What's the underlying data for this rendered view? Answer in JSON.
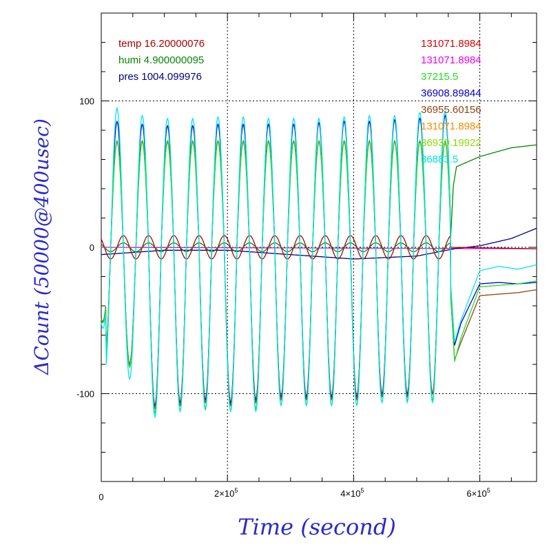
{
  "chart_data": {
    "type": "line",
    "xlabel": "Time (second)",
    "ylabel": "ΔCount (50000@400usec)",
    "xlim": [
      0,
      690000
    ],
    "ylim": [
      -160,
      160
    ],
    "x_ticks": [
      {
        "value": 0,
        "label": "0"
      },
      {
        "value": 200000,
        "mant": "2×10",
        "exp": "5"
      },
      {
        "value": 400000,
        "mant": "4×10",
        "exp": "5"
      },
      {
        "value": 600000,
        "mant": "6×10",
        "exp": "5"
      }
    ],
    "y_ticks": [
      {
        "value": 100,
        "label": "100"
      },
      {
        "value": 0,
        "label": "0"
      },
      {
        "value": -100,
        "label": "-100"
      }
    ],
    "grid": true,
    "env_labels": [
      {
        "text": "temp 16.20000076",
        "color": "#aa0000"
      },
      {
        "text": "humi 4.900000095",
        "color": "#008800"
      },
      {
        "text": "pres 1004.099976",
        "color": "#000080"
      }
    ],
    "channel_labels": [
      {
        "text": "131071.8984",
        "color": "#dd0000"
      },
      {
        "text": "131071.8984",
        "color": "#ee00ee"
      },
      {
        "text": "37215.5",
        "color": "#22dd22"
      },
      {
        "text": "36908.89844",
        "color": "#0000cc"
      },
      {
        "text": "36955.60156",
        "color": "#8b4513"
      },
      {
        "text": "131071.8984",
        "color": "#ff8800"
      },
      {
        "text": "36930.19922",
        "color": "#88dd00"
      },
      {
        "text": "36883.5",
        "color": "#00dddd"
      }
    ],
    "oscillation": {
      "period": 40000,
      "phase_x": 25000,
      "end_x": 553000
    },
    "series": [
      {
        "color": "#00e5e5",
        "peaks": [
          95,
          90,
          88,
          88,
          89,
          89,
          88,
          88,
          88,
          89,
          90,
          90,
          92,
          93
        ],
        "troughs": [
          -90,
          -116,
          -112,
          -110,
          -112,
          -112,
          -108,
          -108,
          -108,
          -108,
          -106,
          -106,
          -106,
          -104
        ],
        "step_x": [
          553000,
          560000,
          570000,
          600000,
          630000,
          660000,
          690000
        ],
        "step_y": [
          -20,
          -65,
          -50,
          -16,
          -13,
          -15,
          -12
        ]
      },
      {
        "color": "#22dd22",
        "peaks": [
          73,
          73,
          73,
          73,
          73,
          73,
          73,
          73,
          73,
          73,
          73,
          73,
          73,
          73
        ],
        "troughs": [
          -82,
          -113,
          -112,
          -111,
          -112,
          -110,
          -108,
          -108,
          -108,
          -108,
          -106,
          -105,
          -104,
          -104
        ],
        "step_x": [
          553000,
          560000,
          570000,
          600000,
          630000,
          660000,
          690000
        ],
        "step_y": [
          -25,
          -78,
          -62,
          -27,
          -26,
          -25,
          -23
        ]
      },
      {
        "color": "#8b4513",
        "peaks": [
          72,
          72,
          72,
          72,
          72,
          72,
          72,
          72,
          72,
          72,
          72,
          72,
          72,
          72
        ],
        "troughs": [
          -80,
          -110,
          -108,
          -106,
          -108,
          -106,
          -104,
          -104,
          -104,
          -104,
          -102,
          -102,
          -100,
          -100
        ],
        "step_x": [
          553000,
          560000,
          570000,
          600000,
          630000,
          660000,
          690000
        ],
        "step_y": [
          -28,
          -77,
          -65,
          -33,
          -32,
          -31,
          -29
        ]
      },
      {
        "color": "#0000cc",
        "peaks": [
          86,
          84,
          83,
          83,
          84,
          84,
          84,
          84,
          85,
          86,
          86,
          87,
          88,
          90
        ],
        "troughs": [
          -80,
          -108,
          -106,
          -104,
          -106,
          -104,
          -102,
          -102,
          -102,
          -102,
          -100,
          -100,
          -100,
          -100
        ],
        "step_x": [
          553000,
          560000,
          570000,
          600000,
          630000,
          660000,
          690000
        ],
        "step_y": [
          -20,
          -67,
          -52,
          -25,
          -24,
          -25,
          -24
        ]
      },
      {
        "color": "#008800",
        "x": [
          0,
          553000,
          558000,
          563000,
          600000,
          650000,
          690000
        ],
        "y": [
          0,
          0,
          42,
          55,
          62,
          68,
          70
        ],
        "wave": 3
      },
      {
        "color": "#aa0000",
        "x": [
          0,
          553000,
          690000
        ],
        "y": [
          0,
          0,
          -1
        ],
        "wave": 8
      },
      {
        "color": "#000080",
        "x": [
          0,
          100000,
          200000,
          300000,
          400000,
          500000,
          560000,
          600000,
          650000,
          690000
        ],
        "y": [
          -5,
          -2,
          -2,
          -5,
          -8,
          -6,
          -1,
          1,
          6,
          13
        ],
        "wave": 0
      },
      {
        "color": "#ee00ee",
        "x": [
          0,
          690000
        ],
        "y": [
          0,
          -1
        ],
        "wave": 0
      }
    ]
  }
}
